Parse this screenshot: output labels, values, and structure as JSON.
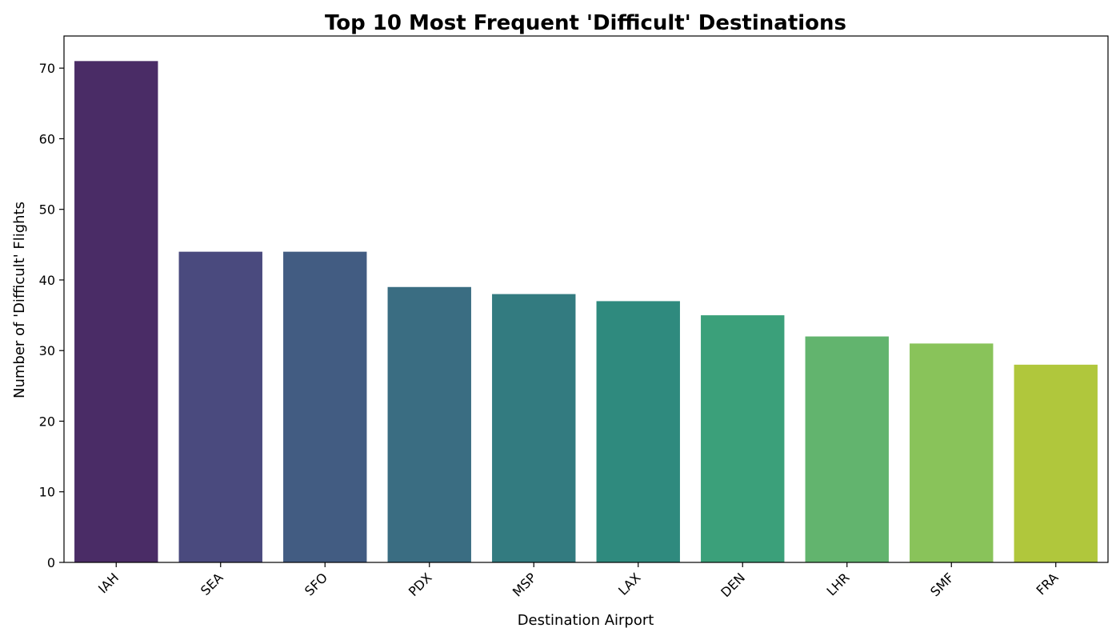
{
  "chart_data": {
    "type": "bar",
    "title": "Top 10 Most Frequent 'Difficult' Destinations",
    "xlabel": "Destination Airport",
    "ylabel": "Number of 'Difficult' Flights",
    "categories": [
      "IAH",
      "SEA",
      "SFO",
      "PDX",
      "MSP",
      "LAX",
      "DEN",
      "LHR",
      "SMF",
      "FRA"
    ],
    "values": [
      71,
      44,
      44,
      39,
      38,
      37,
      35,
      32,
      31,
      28
    ],
    "colors": [
      "#4a2c66",
      "#4a4a7e",
      "#425c82",
      "#3a6d82",
      "#337b80",
      "#2f8a7e",
      "#3ba07a",
      "#62b46e",
      "#89c35a",
      "#b0c73c"
    ],
    "ylim": [
      0,
      74.55
    ],
    "yticks": [
      0,
      10,
      20,
      30,
      40,
      50,
      60,
      70
    ],
    "grid": false,
    "legend": "none"
  }
}
